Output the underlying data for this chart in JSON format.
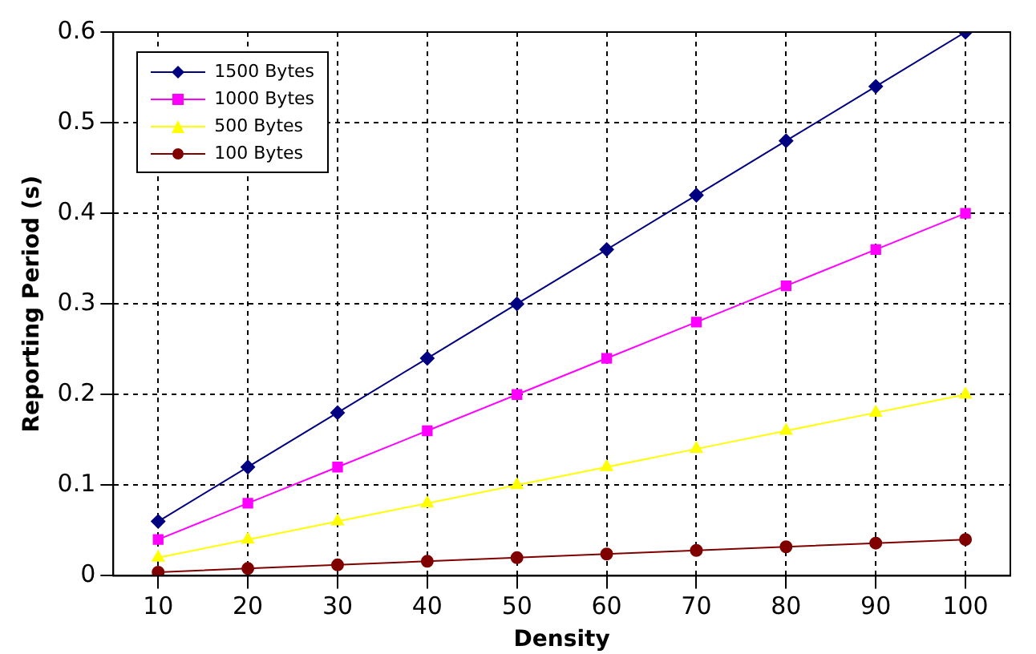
{
  "chart_data": {
    "type": "line",
    "xlabel": "Density",
    "ylabel": "Reporting Period (s)",
    "categories": [
      "10",
      "20",
      "30",
      "40",
      "50",
      "60",
      "70",
      "80",
      "90",
      "100"
    ],
    "ylim": [
      0,
      0.6
    ],
    "yticks": [
      0,
      0.1,
      0.2,
      0.3,
      0.4,
      0.5,
      0.6
    ],
    "grid": true,
    "legend": "top left",
    "line_style": "solid",
    "series": [
      {
        "name": "1500 Bytes",
        "color": "#000080",
        "marker": "diamond",
        "values": [
          0.06,
          0.12,
          0.18,
          0.24,
          0.3,
          0.36,
          0.42,
          0.48,
          0.54,
          0.6
        ]
      },
      {
        "name": "1000 Bytes",
        "color": "#ff00ff",
        "marker": "square",
        "values": [
          0.04,
          0.08,
          0.12,
          0.16,
          0.2,
          0.24,
          0.28,
          0.32,
          0.36,
          0.4
        ]
      },
      {
        "name": "500 Bytes",
        "color": "#ffff00",
        "marker": "triangle",
        "values": [
          0.02,
          0.04,
          0.06,
          0.08,
          0.1,
          0.12,
          0.14,
          0.16,
          0.18,
          0.2
        ]
      },
      {
        "name": "100 Bytes",
        "color": "#800000",
        "marker": "circle",
        "values": [
          0.004,
          0.008,
          0.012,
          0.016,
          0.02,
          0.024,
          0.028,
          0.032,
          0.036,
          0.04
        ]
      }
    ]
  }
}
